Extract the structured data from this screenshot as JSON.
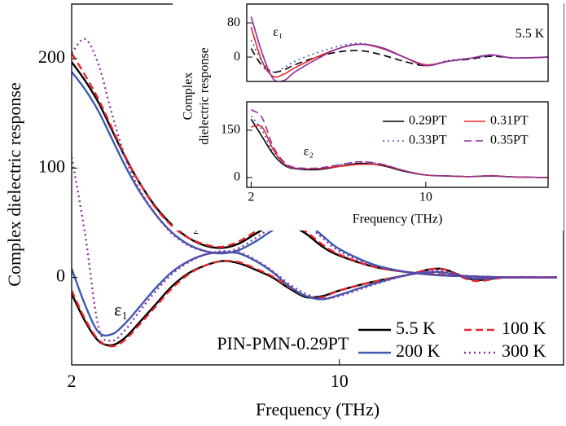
{
  "chart_data": [
    {
      "type": "line",
      "xlabel": "Frequency (THz)",
      "ylabel": "Complex dielectric response",
      "x": [
        2,
        2.4,
        2.8,
        3.2,
        3.6,
        4,
        4.5,
        5,
        5.5,
        6,
        6.5,
        7,
        7.5,
        8,
        8.5,
        9,
        9.5,
        10,
        11,
        12,
        13,
        14,
        15,
        16.5
      ],
      "xlim": [
        2,
        16.7
      ],
      "ylim": [
        -80,
        250
      ],
      "xticks": [
        2,
        10
      ],
      "yticks": [
        0,
        100,
        200
      ],
      "series": [
        {
          "name": "5.5 K",
          "color": "#000000",
          "dash": "solid",
          "eps2_values": [
            197,
            180,
            160,
            135,
            110,
            88,
            65,
            48,
            36,
            29,
            27,
            31,
            40,
            48,
            48,
            40,
            28,
            20,
            10,
            5,
            2,
            1,
            0,
            0
          ],
          "eps1_values": [
            -15,
            -40,
            -58,
            -62,
            -55,
            -42,
            -25,
            -8,
            4,
            11,
            15,
            13,
            7,
            0,
            -10,
            -18,
            -17,
            -12,
            -4,
            2,
            8,
            -2,
            0,
            0
          ]
        },
        {
          "name": "100 K",
          "color": "#e8262a",
          "dash": "dashed",
          "eps2_values": [
            205,
            185,
            163,
            137,
            111,
            88,
            64,
            47,
            36,
            30,
            28,
            33,
            42,
            50,
            50,
            42,
            30,
            21,
            10,
            5,
            3,
            1,
            0,
            0
          ],
          "eps1_values": [
            -12,
            -38,
            -57,
            -63,
            -57,
            -44,
            -27,
            -10,
            3,
            11,
            15,
            14,
            8,
            1,
            -9,
            -17,
            -18,
            -12,
            -4,
            2,
            8,
            -3,
            0,
            0
          ]
        },
        {
          "name": "200 K",
          "color": "#3a5bb0",
          "dash": "solid",
          "eps2_values": [
            188,
            172,
            152,
            127,
            102,
            80,
            58,
            41,
            30,
            24,
            22,
            25,
            33,
            43,
            51,
            50,
            38,
            26,
            12,
            5,
            2,
            1,
            0,
            0
          ],
          "eps1_values": [
            8,
            -25,
            -50,
            -52,
            -42,
            -28,
            -10,
            5,
            15,
            21,
            23,
            22,
            15,
            5,
            -8,
            -17,
            -20,
            -16,
            -6,
            2,
            5,
            -1,
            0,
            0
          ]
        },
        {
          "name": "300 K",
          "color": "#8e2f9e",
          "dash": "dotted",
          "eps2_values": [
            205,
            218,
            195,
            150,
            110,
            82,
            58,
            40,
            29,
            24,
            23,
            27,
            36,
            46,
            51,
            48,
            36,
            24,
            11,
            5,
            2,
            1,
            0,
            0
          ],
          "eps1_values": [
            110,
            40,
            -45,
            -58,
            -48,
            -32,
            -13,
            3,
            14,
            21,
            24,
            23,
            16,
            6,
            -6,
            -15,
            -19,
            -17,
            -7,
            2,
            6,
            -1,
            0,
            0
          ]
        }
      ],
      "annotations": [
        {
          "text": "ε₂",
          "x": 5.4,
          "y": 47
        },
        {
          "text": "ε₁",
          "x": 3.27,
          "y": -31
        },
        {
          "text": "PIN-PMN-0.29PT",
          "x": 6.34,
          "y": -62
        }
      ],
      "legend": "lower right"
    },
    {
      "type": "line",
      "ylabel": [
        "Complex",
        "dielectric response"
      ],
      "x": [
        2,
        2.5,
        3,
        3.5,
        4,
        5,
        6,
        7,
        8,
        9,
        10,
        11,
        12,
        13,
        14,
        15.6
      ],
      "xlim": [
        1.8,
        15.6
      ],
      "ylim": [
        -57,
        124
      ],
      "yticks": [
        0,
        80
      ],
      "series": [
        {
          "color": "#000000",
          "dash": "dashed",
          "values": [
            20,
            -20,
            -35,
            -30,
            -18,
            0,
            12,
            15,
            5,
            -10,
            -20,
            -10,
            -5,
            2,
            -2,
            0
          ]
        },
        {
          "color": "#e8262a",
          "dash": "solid",
          "values": [
            70,
            -10,
            -45,
            -40,
            -25,
            0,
            20,
            30,
            20,
            0,
            -18,
            -10,
            -3,
            5,
            -2,
            0
          ]
        },
        {
          "color": "#3a5bb0",
          "dash": "dotted",
          "values": [
            40,
            -10,
            -35,
            -25,
            -10,
            10,
            25,
            32,
            20,
            0,
            -20,
            -8,
            -3,
            3,
            -2,
            0
          ]
        },
        {
          "color": "#8e2f9e",
          "dash": "solid",
          "values": [
            95,
            10,
            -50,
            -55,
            -35,
            -5,
            20,
            30,
            22,
            0,
            -20,
            -10,
            -3,
            5,
            -2,
            0
          ]
        }
      ],
      "annotations": [
        {
          "text": "ε₁",
          "x": 3.0,
          "y": 57
        },
        {
          "text": "5.5 K",
          "x": 14.1,
          "y": 53
        }
      ]
    },
    {
      "type": "line",
      "xlabel": "Frequency (THz)",
      "x": [
        2,
        2.5,
        3,
        3.5,
        4,
        5,
        6,
        7,
        8,
        9,
        10,
        11,
        12,
        13,
        14,
        15.6
      ],
      "xlim": [
        1.8,
        15.6
      ],
      "ylim": [
        -31,
        240
      ],
      "xticks": [
        2,
        10
      ],
      "yticks": [
        0,
        150
      ],
      "series": [
        {
          "name": "0.29PT",
          "color": "#000000",
          "dash": "solid",
          "values": [
            185,
            130,
            75,
            40,
            28,
            25,
            35,
            45,
            38,
            20,
            8,
            5,
            3,
            5,
            2,
            0
          ]
        },
        {
          "name": "0.31PT",
          "color": "#e8262a",
          "dash": "solid",
          "values": [
            160,
            160,
            90,
            45,
            30,
            28,
            35,
            42,
            40,
            22,
            8,
            5,
            3,
            6,
            2,
            0
          ]
        },
        {
          "name": "0.33PT",
          "color": "#3a5bb0",
          "dash": "dotted",
          "values": [
            195,
            150,
            80,
            42,
            28,
            28,
            40,
            50,
            42,
            22,
            8,
            5,
            3,
            5,
            2,
            0
          ]
        },
        {
          "name": "0.35PT",
          "color": "#8e2f9e",
          "dash": "dashed",
          "values": [
            215,
            190,
            100,
            50,
            32,
            30,
            40,
            50,
            42,
            22,
            8,
            5,
            3,
            6,
            2,
            0
          ]
        }
      ],
      "annotations": [
        {
          "text": "ε₂",
          "x": 4.4,
          "y": 80
        }
      ],
      "legend": "upper right"
    }
  ]
}
